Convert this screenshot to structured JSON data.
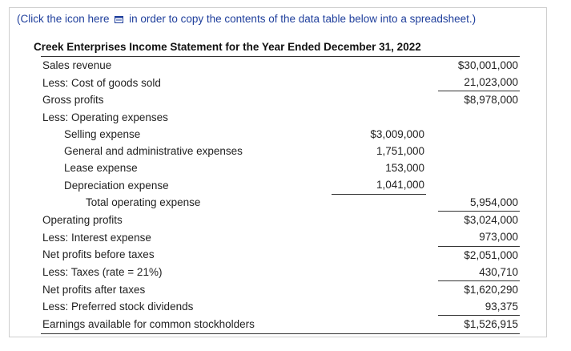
{
  "note": {
    "before": "(Click the icon here",
    "icon": "copy-icon",
    "after": "in order to copy the contents of the data table below into a spreadsheet.)"
  },
  "statement": {
    "title": "Creek Enterprises Income Statement for the Year Ended December 31, 2022",
    "rows": [
      {
        "label": "Sales revenue",
        "mid": "",
        "right": "$30,001,000"
      },
      {
        "label": "Less: Cost of goods sold",
        "mid": "",
        "right": "21,023,000"
      },
      {
        "label": "Gross profits",
        "mid": "",
        "right": "$8,978,000"
      },
      {
        "label": "Less: Operating expenses",
        "mid": "",
        "right": ""
      },
      {
        "label": "Selling expense",
        "mid": "$3,009,000",
        "right": ""
      },
      {
        "label": "General and administrative expenses",
        "mid": "1,751,000",
        "right": ""
      },
      {
        "label": "Lease expense",
        "mid": "153,000",
        "right": ""
      },
      {
        "label": "Depreciation expense",
        "mid": "1,041,000",
        "right": ""
      },
      {
        "label": "Total operating expense",
        "mid": "",
        "right": "5,954,000"
      },
      {
        "label": "Operating profits",
        "mid": "",
        "right": "$3,024,000"
      },
      {
        "label": "Less: Interest expense",
        "mid": "",
        "right": "973,000"
      },
      {
        "label": "Net profits before taxes",
        "mid": "",
        "right": "$2,051,000"
      },
      {
        "label": "Less: Taxes (rate = 21%)",
        "mid": "",
        "right": "430,710"
      },
      {
        "label": "Net profits after taxes",
        "mid": "",
        "right": "$1,620,290"
      },
      {
        "label": "Less: Preferred stock dividends",
        "mid": "",
        "right": "93,375"
      },
      {
        "label": "Earnings available for common stockholders",
        "mid": "",
        "right": "$1,526,915"
      }
    ]
  }
}
